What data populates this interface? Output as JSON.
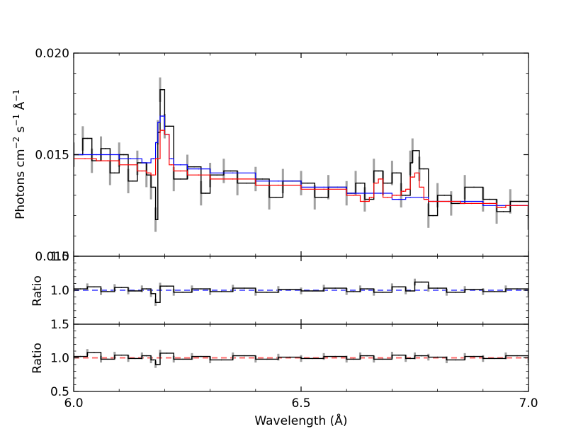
{
  "chart_data": {
    "type": "line",
    "panels": [
      {
        "id": "spectrum",
        "ylabel_parts": [
          "Photons cm",
          "−2",
          " s",
          "−1",
          " Å",
          "−1"
        ],
        "ylim": [
          0.01,
          0.02
        ],
        "yticks": [
          0.01,
          0.015,
          0.02
        ],
        "ytick_labels": [
          "0.010",
          "0.015",
          "0.020"
        ],
        "series": [
          {
            "role": "data",
            "color": "#000000",
            "error_color": "#a0a0a0",
            "error_half_width": 0.0006,
            "x": [
              6.0,
              6.02,
              6.04,
              6.06,
              6.08,
              6.1,
              6.12,
              6.14,
              6.16,
              6.17,
              6.18,
              6.185,
              6.19,
              6.2,
              6.22,
              6.25,
              6.28,
              6.3,
              6.33,
              6.36,
              6.4,
              6.43,
              6.46,
              6.5,
              6.53,
              6.56,
              6.6,
              6.62,
              6.64,
              6.66,
              6.68,
              6.7,
              6.72,
              6.74,
              6.745,
              6.76,
              6.78,
              6.8,
              6.83,
              6.86,
              6.9,
              6.93,
              6.96,
              7.0
            ],
            "y": [
              0.015,
              0.0158,
              0.0147,
              0.0153,
              0.0141,
              0.015,
              0.0137,
              0.0146,
              0.014,
              0.0134,
              0.0118,
              0.0161,
              0.0182,
              0.0164,
              0.0138,
              0.0144,
              0.0131,
              0.014,
              0.0142,
              0.0136,
              0.0138,
              0.0129,
              0.0137,
              0.0136,
              0.0129,
              0.0134,
              0.0131,
              0.0136,
              0.0128,
              0.0142,
              0.0136,
              0.0141,
              0.013,
              0.0146,
              0.0152,
              0.0143,
              0.012,
              0.013,
              0.0126,
              0.0134,
              0.0128,
              0.0122,
              0.0127,
              0.0119
            ]
          },
          {
            "role": "model-blue",
            "color": "#0000ff",
            "x": [
              6.0,
              6.1,
              6.15,
              6.17,
              6.18,
              6.185,
              6.19,
              6.2,
              6.21,
              6.22,
              6.25,
              6.3,
              6.4,
              6.5,
              6.6,
              6.65,
              6.7,
              6.73,
              6.75,
              6.78,
              6.8,
              6.9,
              7.0
            ],
            "y": [
              0.015,
              0.0148,
              0.0146,
              0.0148,
              0.0156,
              0.0166,
              0.0169,
              0.016,
              0.0148,
              0.0145,
              0.0143,
              0.0141,
              0.0137,
              0.0134,
              0.0131,
              0.0131,
              0.0128,
              0.0129,
              0.0129,
              0.0127,
              0.0127,
              0.0125,
              0.0123
            ]
          },
          {
            "role": "model-red",
            "color": "#ff0000",
            "x": [
              6.0,
              6.05,
              6.1,
              6.14,
              6.16,
              6.17,
              6.18,
              6.19,
              6.2,
              6.21,
              6.22,
              6.25,
              6.3,
              6.4,
              6.5,
              6.6,
              6.63,
              6.65,
              6.66,
              6.67,
              6.68,
              6.7,
              6.72,
              6.73,
              6.74,
              6.75,
              6.76,
              6.77,
              6.78,
              6.8,
              6.85,
              6.9,
              6.93,
              6.95,
              7.0
            ],
            "y": [
              0.0148,
              0.0147,
              0.0145,
              0.0142,
              0.0141,
              0.014,
              0.0148,
              0.0162,
              0.016,
              0.0145,
              0.0142,
              0.014,
              0.0138,
              0.0135,
              0.0133,
              0.013,
              0.0127,
              0.0129,
              0.0136,
              0.0138,
              0.0129,
              0.013,
              0.0132,
              0.0133,
              0.0139,
              0.0141,
              0.0134,
              0.0128,
              0.0127,
              0.0127,
              0.0126,
              0.0126,
              0.0124,
              0.0125,
              0.0122
            ]
          }
        ]
      },
      {
        "id": "ratio-blue",
        "ylabel": "Ratio",
        "ylim": [
          0.5,
          1.5
        ],
        "yticks": [
          1.0,
          1.5
        ],
        "ytick_labels": [
          "1.0",
          "1.5"
        ],
        "reference_line": {
          "y": 1.0,
          "color": "#6a6aff",
          "style": "dashed"
        },
        "series": [
          {
            "role": "ratio",
            "color": "#000000",
            "error_color": "#a0a0a0",
            "error_half_width": 0.05,
            "x": [
              6.0,
              6.03,
              6.06,
              6.09,
              6.12,
              6.15,
              6.17,
              6.18,
              6.19,
              6.22,
              6.26,
              6.3,
              6.35,
              6.4,
              6.45,
              6.5,
              6.55,
              6.6,
              6.63,
              6.66,
              6.7,
              6.73,
              6.75,
              6.78,
              6.82,
              6.86,
              6.9,
              6.95,
              7.0
            ],
            "y": [
              1.02,
              1.05,
              0.98,
              1.04,
              0.99,
              1.02,
              0.95,
              0.82,
              1.06,
              0.97,
              1.02,
              0.98,
              1.03,
              0.97,
              1.01,
              0.99,
              1.03,
              0.98,
              1.02,
              0.97,
              1.05,
              0.99,
              1.12,
              1.03,
              0.97,
              1.01,
              0.98,
              1.02,
              0.96
            ]
          }
        ]
      },
      {
        "id": "ratio-red",
        "ylabel": "Ratio",
        "ylim": [
          0.5,
          1.5
        ],
        "yticks": [
          0.5,
          1.0,
          1.5
        ],
        "ytick_labels": [
          "0.5",
          "1.0",
          "1.5"
        ],
        "reference_line": {
          "y": 1.0,
          "color": "#ff6a6a",
          "style": "dashed"
        },
        "series": [
          {
            "role": "ratio",
            "color": "#000000",
            "error_color": "#a0a0a0",
            "error_half_width": 0.05,
            "x": [
              6.0,
              6.03,
              6.06,
              6.09,
              6.12,
              6.15,
              6.17,
              6.18,
              6.19,
              6.22,
              6.26,
              6.3,
              6.35,
              6.4,
              6.45,
              6.5,
              6.55,
              6.6,
              6.63,
              6.66,
              6.7,
              6.73,
              6.75,
              6.78,
              6.82,
              6.86,
              6.9,
              6.95,
              7.0
            ],
            "y": [
              1.02,
              1.08,
              0.98,
              1.04,
              0.99,
              1.03,
              0.97,
              0.9,
              1.07,
              0.98,
              1.02,
              0.97,
              1.03,
              0.98,
              1.01,
              0.99,
              1.02,
              0.98,
              1.03,
              0.98,
              1.04,
              0.99,
              1.03,
              1.01,
              0.97,
              1.02,
              0.99,
              1.03,
              0.97
            ]
          }
        ]
      }
    ],
    "x_axis": {
      "label": "Wavelength (Å)",
      "xlim": [
        6.0,
        7.0
      ],
      "ticks": [
        6.0,
        6.5,
        7.0
      ],
      "tick_labels": [
        "6.0",
        "6.5",
        "7.0"
      ]
    },
    "grid": false
  }
}
